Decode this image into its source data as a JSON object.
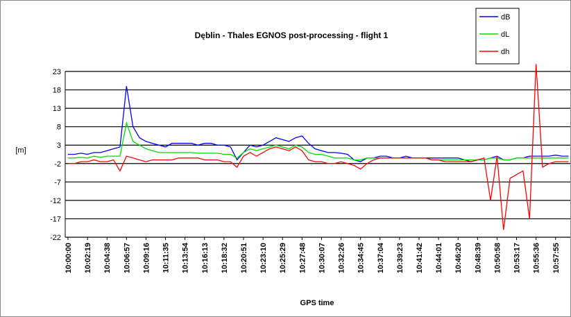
{
  "chart_data": {
    "type": "line",
    "title": "Dęblin - Thales EGNOS post-processing - flight 1",
    "x_label": "GPS time",
    "y_label": "[m]",
    "categories": [
      "10:00:00",
      null,
      null,
      "10:02:19",
      null,
      null,
      "10:04:38",
      null,
      null,
      "10:06:57",
      null,
      null,
      "10:09:16",
      null,
      null,
      "10:11:35",
      null,
      null,
      "10:13:54",
      null,
      null,
      "10:16:13",
      null,
      null,
      "10:18:32",
      null,
      null,
      "10:20:51",
      null,
      null,
      "10:23:10",
      null,
      null,
      "10:25:29",
      null,
      null,
      "10:27:48",
      null,
      null,
      "10:30:07",
      null,
      null,
      "10:32:26",
      null,
      null,
      "10:34:45",
      null,
      null,
      "10:37:04",
      null,
      null,
      "10:39:23",
      null,
      null,
      "10:41:42",
      null,
      null,
      "10:44:01",
      null,
      null,
      "10:46:20",
      null,
      null,
      "10:48:39",
      null,
      null,
      "10:50:58",
      null,
      null,
      "10:53:17",
      null,
      null,
      "10:55:36",
      null,
      null,
      "10:57:55",
      null,
      null
    ],
    "series": [
      {
        "name": "dB",
        "color": "#0000ff",
        "values": [
          0.5,
          0.5,
          0.8,
          0.5,
          1,
          1,
          1.5,
          2,
          2.5,
          19,
          8,
          5,
          4,
          3.5,
          3,
          2.5,
          3.5,
          3.5,
          3.5,
          3.5,
          3,
          3.5,
          3.5,
          3,
          3,
          2.5,
          -1,
          1,
          3,
          2.5,
          3,
          4,
          5,
          4.5,
          4,
          5,
          5.5,
          3.5,
          2,
          1.5,
          1,
          1,
          0.8,
          0.5,
          -1,
          -1.5,
          -0.5,
          -0.5,
          0,
          0,
          -0.5,
          -0.5,
          0,
          -0.5,
          -0.5,
          -0.5,
          -0.5,
          -0.5,
          -0.5,
          -0.5,
          -0.5,
          -1,
          -1.5,
          -1,
          -1,
          -0.5,
          0,
          -1,
          -1,
          -0.5,
          -0.5,
          0,
          0,
          0,
          0,
          0.3,
          0,
          0
        ]
      },
      {
        "name": "dL",
        "color": "#00dd00",
        "values": [
          -0.5,
          -0.5,
          -0.3,
          -0.5,
          0,
          -0.3,
          0,
          0,
          0,
          9,
          4,
          3,
          2,
          1.5,
          1,
          1,
          1,
          1,
          1,
          1,
          0.8,
          0.8,
          0.8,
          0.8,
          0.5,
          0.5,
          -0.5,
          1,
          2,
          1.5,
          2,
          2.5,
          3,
          2.5,
          2,
          3,
          2.5,
          1,
          0.5,
          0.5,
          0,
          -0.5,
          -0.5,
          -0.5,
          -1,
          -1,
          -0.5,
          -0.5,
          -0.5,
          -0.5,
          -0.5,
          -0.5,
          -0.5,
          -0.5,
          -0.5,
          -0.5,
          -1,
          -1,
          -1,
          -1,
          -1,
          -1,
          -1,
          -1,
          -1,
          -0.5,
          -0.5,
          -1,
          -1,
          -0.5,
          -0.5,
          -0.5,
          -0.5,
          -0.5,
          -0.5,
          -0.5,
          -0.5,
          -0.5
        ]
      },
      {
        "name": "dh",
        "color": "#ff0000",
        "values": [
          -2,
          -2,
          -1.5,
          -1.5,
          -1,
          -1.5,
          -1.5,
          -1,
          -4,
          0,
          -0.5,
          -1,
          -1.5,
          -1,
          -1,
          -1,
          -1,
          -0.5,
          -0.5,
          -0.5,
          -0.5,
          -1,
          -1,
          -1,
          -1.5,
          -1.5,
          -3,
          0,
          1,
          0,
          1,
          2,
          2.5,
          2,
          1.5,
          2.5,
          1.5,
          -1,
          -1.5,
          -1.5,
          -2,
          -2,
          -1.5,
          -2,
          -2.5,
          -3.5,
          -2,
          -1,
          -0.5,
          -0.5,
          -0.5,
          -0.5,
          -0.5,
          -0.5,
          -0.5,
          -0.5,
          -1,
          -1,
          -1.5,
          -1.5,
          -1.5,
          -1.5,
          -1.5,
          -1,
          -0.5,
          -12,
          0,
          -20,
          -6,
          -5,
          -4,
          -17,
          25,
          -3,
          -2,
          -1.5,
          -1.5,
          -1.5
        ]
      }
    ],
    "ylim": [
      -22,
      23
    ],
    "yticks": [
      -22,
      -17,
      -12,
      -7,
      -2,
      3,
      8,
      13,
      18,
      23
    ],
    "grid": true,
    "legend": "top-right"
  }
}
